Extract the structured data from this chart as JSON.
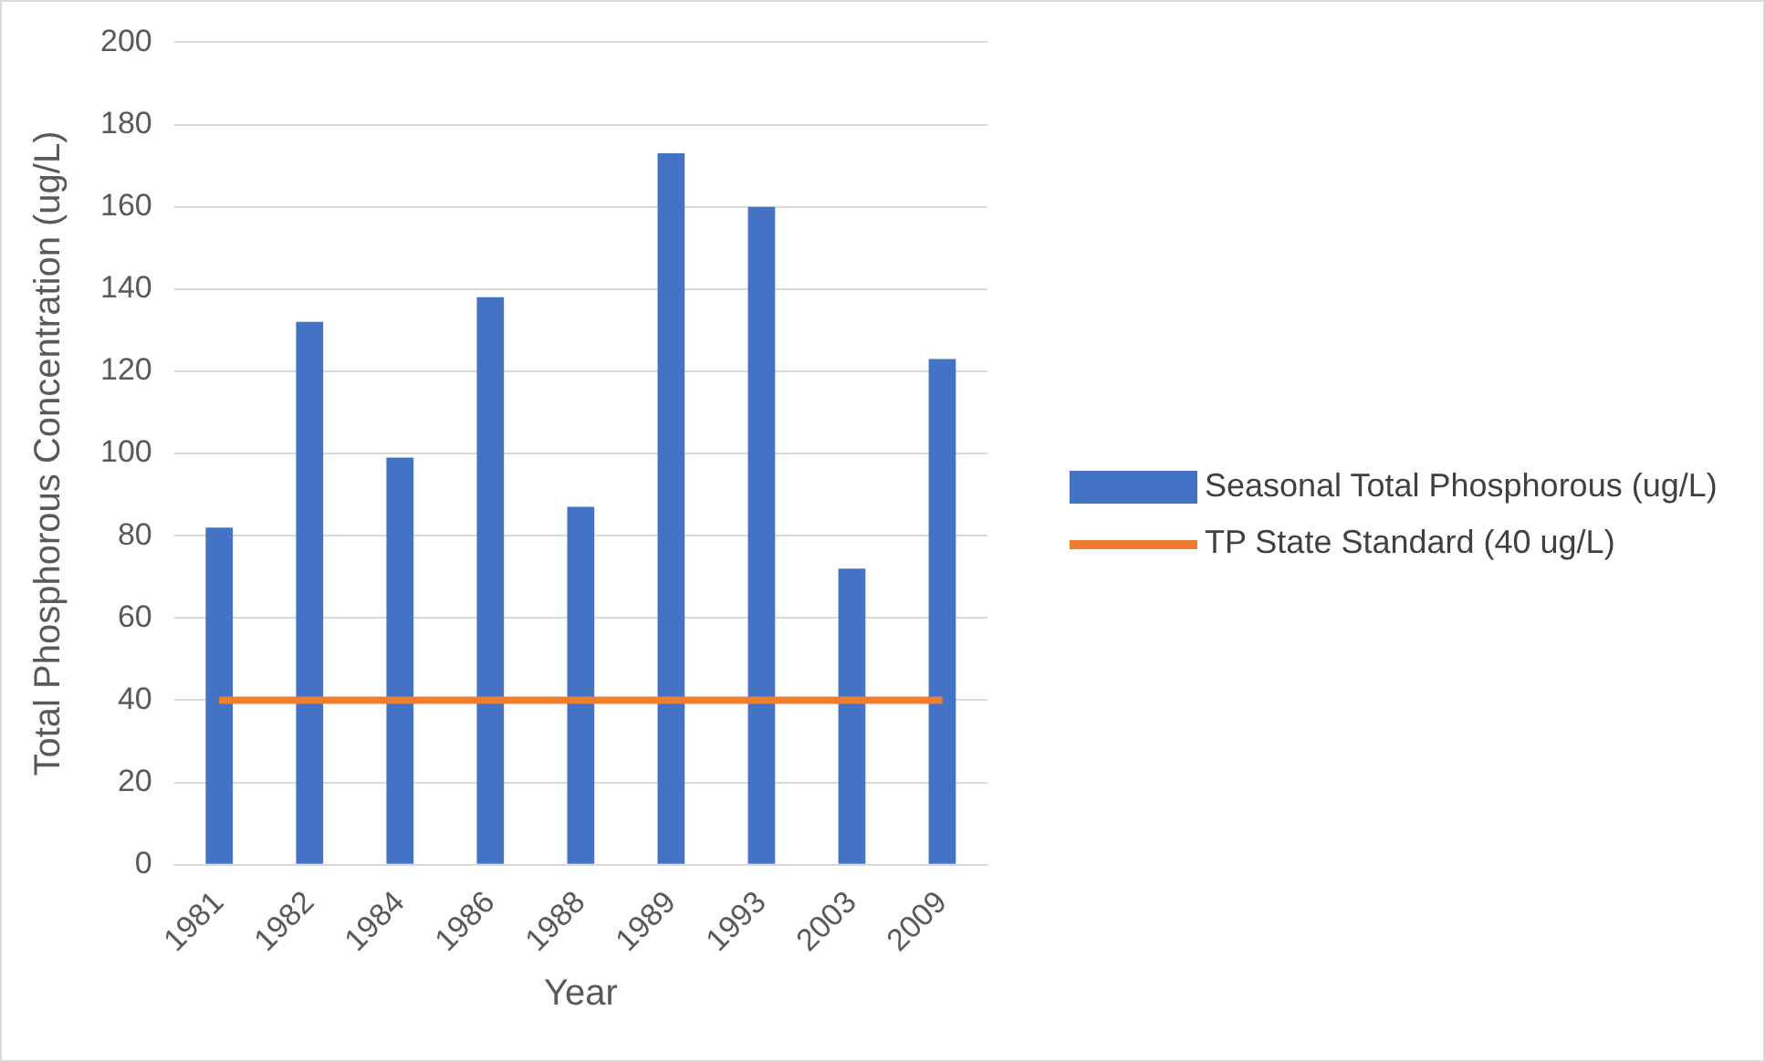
{
  "chart_data": {
    "type": "bar",
    "xlabel": "Year",
    "ylabel": "Total Phosphorous Concentration (ug/L)",
    "categories": [
      "1981",
      "1982",
      "1984",
      "1986",
      "1988",
      "1989",
      "1993",
      "2003",
      "2009"
    ],
    "series": [
      {
        "name": "Seasonal Total Phosphorous (ug/L)",
        "color": "#4472c4",
        "values": [
          82,
          132,
          99,
          138,
          87,
          173,
          160,
          72,
          123
        ]
      },
      {
        "name": "TP State Standard (40 ug/L)",
        "type": "line",
        "color": "#ed7d31",
        "values": [
          40,
          40,
          40,
          40,
          40,
          40,
          40,
          40,
          40
        ]
      }
    ],
    "ylim": [
      0,
      200
    ],
    "yticks": [
      0,
      20,
      40,
      60,
      80,
      100,
      120,
      140,
      160,
      180,
      200
    ],
    "grid": "y",
    "legend": "right",
    "marker": "none"
  }
}
